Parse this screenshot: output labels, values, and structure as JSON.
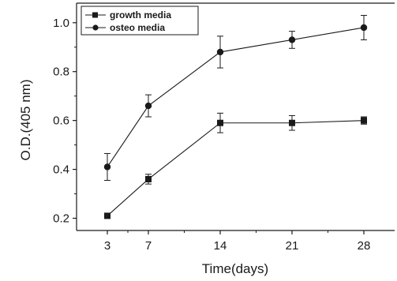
{
  "chart_data": {
    "type": "line",
    "xlabel": "Time(days)",
    "ylabel": "O.D.(405 nm)",
    "x": [
      3,
      7,
      14,
      21,
      28
    ],
    "x_ticks": [
      "3",
      "7",
      "14",
      "21",
      "28"
    ],
    "y_ticks": [
      "0.2",
      "0.4",
      "0.6",
      "0.8",
      "1.0"
    ],
    "ylim": [
      0.15,
      1.08
    ],
    "legend_position": "top-left",
    "grid": false,
    "series": [
      {
        "name": "growth media",
        "marker": "square",
        "values": [
          0.21,
          0.36,
          0.59,
          0.59,
          0.6
        ],
        "errors": [
          0.01,
          0.02,
          0.04,
          0.03,
          0.015
        ]
      },
      {
        "name": "osteo media",
        "marker": "circle",
        "values": [
          0.41,
          0.66,
          0.88,
          0.93,
          0.98
        ],
        "errors": [
          0.055,
          0.045,
          0.065,
          0.035,
          0.05
        ]
      }
    ]
  }
}
